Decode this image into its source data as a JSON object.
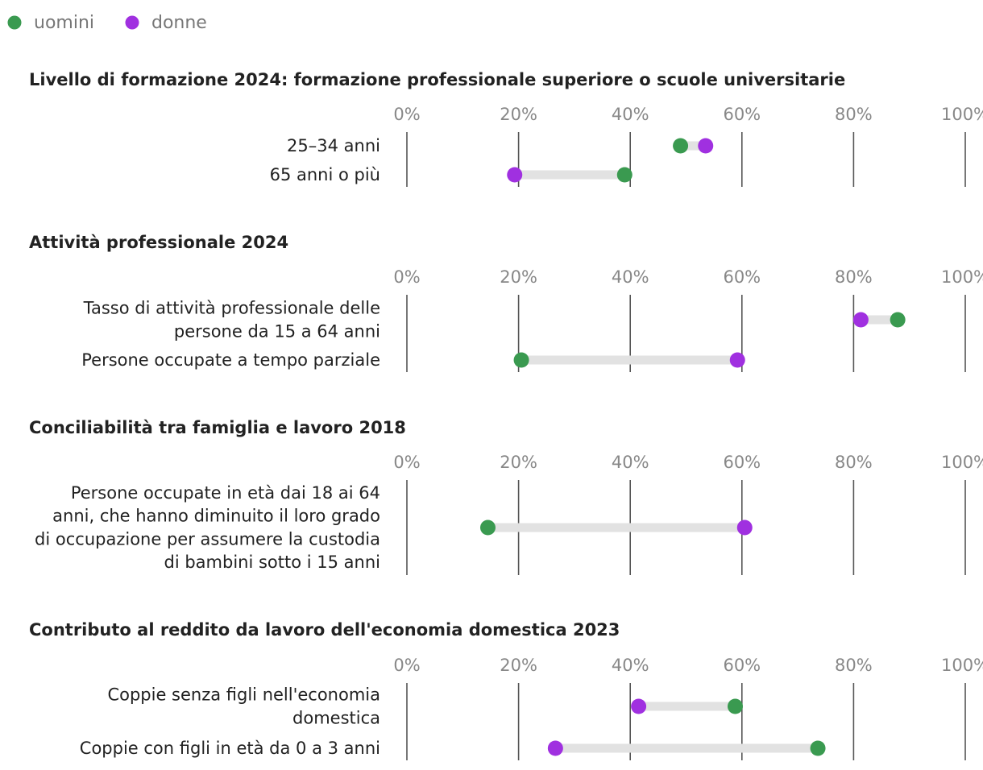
{
  "legend": [
    {
      "name": "uomini",
      "color": "#3a9a50"
    },
    {
      "name": "donne",
      "color": "#a030e0"
    }
  ],
  "chart_data": {
    "type": "dumbbell",
    "xlim": [
      0,
      100
    ],
    "tick_values": [
      0,
      20,
      40,
      60,
      80,
      100
    ],
    "tick_labels": [
      "0%",
      "20%",
      "40%",
      "60%",
      "80%",
      "100%"
    ],
    "series_colors": {
      "uomini": "#3a9a50",
      "donne": "#a030e0",
      "connector": "#e2e2e2",
      "grid": "#555555"
    },
    "panels": [
      {
        "title": "Livello di formazione 2024: formazione professionale superiore o scuole universitarie",
        "rows": [
          {
            "label": [
              "25–34 anni"
            ],
            "uomini": 49,
            "donne": 53.5
          },
          {
            "label": [
              "65 anni o più"
            ],
            "uomini": 39,
            "donne": 19.3
          }
        ]
      },
      {
        "title": "Attività professionale 2024",
        "rows": [
          {
            "label": [
              "Tasso di attività professionale delle",
              "persone da 15 a 64 anni"
            ],
            "uomini": 87.9,
            "donne": 81.3
          },
          {
            "label": [
              "Persone occupate a tempo parziale"
            ],
            "uomini": 20.5,
            "donne": 59.2
          }
        ]
      },
      {
        "title": "Conciliabilità tra famiglia e lavoro 2018",
        "rows": [
          {
            "label": [
              "Persone occupate in età dai 18 ai 64",
              "anni, che hanno diminuito il loro grado",
              "di occupazione per assumere la custodia",
              "di bambini sotto i 15 anni"
            ],
            "uomini": 14.5,
            "donne": 60.5
          }
        ]
      },
      {
        "title": "Contributo al reddito da lavoro dell'economia domestica 2023",
        "rows": [
          {
            "label": [
              "Coppie senza figli nell'economia",
              "domestica"
            ],
            "uomini": 58.8,
            "donne": 41.5
          },
          {
            "label": [
              "Coppie con figli in età da 0 a 3 anni"
            ],
            "uomini": 73.6,
            "donne": 26.6
          }
        ]
      }
    ]
  }
}
